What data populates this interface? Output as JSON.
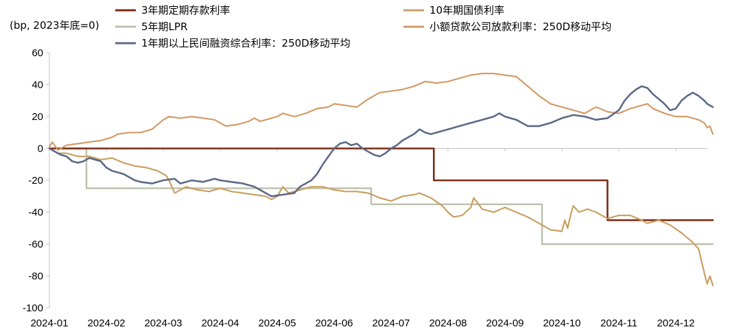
{
  "chart_data": {
    "type": "line",
    "title": "",
    "unit_label": "(bp, 2023年底=0)",
    "xlabel": "",
    "ylabel": "",
    "ylim": [
      -100,
      60
    ],
    "y_ticks": [
      60,
      40,
      20,
      0,
      -20,
      -40,
      -60,
      -80,
      -100
    ],
    "y_tick_labels": [
      "60",
      "40",
      "20",
      "0",
      "-20",
      "-40",
      "-60",
      "-80",
      "-100"
    ],
    "x_tick_labels": [
      "2024-01",
      "2024-02",
      "2024-03",
      "2024-04",
      "2024-05",
      "2024-06",
      "2024-07",
      "2024-08",
      "2024-09",
      "2024-10",
      "2024-11",
      "2024-12"
    ],
    "xlim_months": [
      0,
      11.7
    ],
    "legend_position": "top",
    "series": [
      {
        "name": "3年期定期存款利率",
        "color": "#7b2a12",
        "step": true,
        "points": [
          [
            0,
            0
          ],
          [
            6.75,
            0
          ],
          [
            6.75,
            -20
          ],
          [
            9.8,
            -20
          ],
          [
            9.8,
            -45
          ],
          [
            11.65,
            -45
          ]
        ]
      },
      {
        "name": "10年期国债利率",
        "color": "#c9a062",
        "step": false,
        "points": [
          [
            0,
            0
          ],
          [
            0.15,
            -3
          ],
          [
            0.3,
            -3
          ],
          [
            0.5,
            -5
          ],
          [
            0.7,
            -5
          ],
          [
            0.9,
            -7
          ],
          [
            1.1,
            -6
          ],
          [
            1.3,
            -9
          ],
          [
            1.5,
            -11
          ],
          [
            1.7,
            -12
          ],
          [
            1.9,
            -14
          ],
          [
            2.05,
            -17
          ],
          [
            2.1,
            -20
          ],
          [
            2.2,
            -28
          ],
          [
            2.4,
            -24
          ],
          [
            2.6,
            -26
          ],
          [
            2.8,
            -27
          ],
          [
            3.0,
            -25
          ],
          [
            3.2,
            -27
          ],
          [
            3.4,
            -28
          ],
          [
            3.6,
            -29
          ],
          [
            3.8,
            -30
          ],
          [
            3.9,
            -32
          ],
          [
            4.0,
            -30
          ],
          [
            4.1,
            -24
          ],
          [
            4.2,
            -28
          ],
          [
            4.4,
            -26
          ],
          [
            4.6,
            -24
          ],
          [
            4.8,
            -24
          ],
          [
            5.0,
            -26
          ],
          [
            5.2,
            -27
          ],
          [
            5.4,
            -27
          ],
          [
            5.6,
            -28
          ],
          [
            5.8,
            -31
          ],
          [
            6.0,
            -33
          ],
          [
            6.2,
            -30
          ],
          [
            6.4,
            -29
          ],
          [
            6.5,
            -28
          ],
          [
            6.7,
            -31
          ],
          [
            6.9,
            -36
          ],
          [
            7.0,
            -40
          ],
          [
            7.1,
            -43
          ],
          [
            7.25,
            -42
          ],
          [
            7.4,
            -37
          ],
          [
            7.45,
            -31
          ],
          [
            7.6,
            -38
          ],
          [
            7.8,
            -40
          ],
          [
            8.0,
            -37
          ],
          [
            8.2,
            -40
          ],
          [
            8.4,
            -43
          ],
          [
            8.6,
            -47
          ],
          [
            8.8,
            -51
          ],
          [
            9.0,
            -52
          ],
          [
            9.05,
            -45
          ],
          [
            9.1,
            -50
          ],
          [
            9.15,
            -42
          ],
          [
            9.2,
            -36
          ],
          [
            9.3,
            -40
          ],
          [
            9.45,
            -38
          ],
          [
            9.6,
            -40
          ],
          [
            9.8,
            -44
          ],
          [
            10.0,
            -42
          ],
          [
            10.2,
            -42
          ],
          [
            10.4,
            -45
          ],
          [
            10.5,
            -47
          ],
          [
            10.7,
            -45
          ],
          [
            10.9,
            -48
          ],
          [
            11.1,
            -53
          ],
          [
            11.3,
            -59
          ],
          [
            11.4,
            -63
          ],
          [
            11.5,
            -78
          ],
          [
            11.55,
            -85
          ],
          [
            11.6,
            -80
          ],
          [
            11.65,
            -86
          ]
        ]
      },
      {
        "name": "5年期LPR",
        "color": "#bcbfaa",
        "step": true,
        "points": [
          [
            0,
            0
          ],
          [
            0.65,
            0
          ],
          [
            0.65,
            -25
          ],
          [
            5.65,
            -25
          ],
          [
            5.65,
            -35
          ],
          [
            8.65,
            -35
          ],
          [
            8.65,
            -60
          ],
          [
            11.65,
            -60
          ]
        ]
      },
      {
        "name": "小额贷款公司放款利率：250D移动平均",
        "color": "#d29b66",
        "step": false,
        "points": [
          [
            0,
            1
          ],
          [
            0.05,
            4
          ],
          [
            0.15,
            -1
          ],
          [
            0.3,
            2
          ],
          [
            0.5,
            3
          ],
          [
            0.7,
            4
          ],
          [
            0.9,
            5
          ],
          [
            1.1,
            7
          ],
          [
            1.2,
            9
          ],
          [
            1.4,
            10
          ],
          [
            1.6,
            10
          ],
          [
            1.8,
            12
          ],
          [
            2.0,
            18
          ],
          [
            2.1,
            20
          ],
          [
            2.3,
            19
          ],
          [
            2.5,
            20
          ],
          [
            2.7,
            19
          ],
          [
            2.9,
            18
          ],
          [
            3.0,
            16
          ],
          [
            3.1,
            14
          ],
          [
            3.3,
            15
          ],
          [
            3.5,
            17
          ],
          [
            3.6,
            19
          ],
          [
            3.7,
            17
          ],
          [
            3.9,
            19
          ],
          [
            4.0,
            20
          ],
          [
            4.1,
            22
          ],
          [
            4.3,
            20
          ],
          [
            4.5,
            22
          ],
          [
            4.7,
            25
          ],
          [
            4.9,
            26
          ],
          [
            5.0,
            28
          ],
          [
            5.2,
            27
          ],
          [
            5.4,
            26
          ],
          [
            5.6,
            31
          ],
          [
            5.8,
            35
          ],
          [
            6.0,
            36
          ],
          [
            6.2,
            37
          ],
          [
            6.4,
            39
          ],
          [
            6.6,
            42
          ],
          [
            6.8,
            41
          ],
          [
            7.0,
            42
          ],
          [
            7.2,
            44
          ],
          [
            7.4,
            46
          ],
          [
            7.6,
            47
          ],
          [
            7.8,
            47
          ],
          [
            8.0,
            46
          ],
          [
            8.2,
            45
          ],
          [
            8.4,
            39
          ],
          [
            8.6,
            33
          ],
          [
            8.8,
            28
          ],
          [
            9.0,
            26
          ],
          [
            9.2,
            24
          ],
          [
            9.4,
            22
          ],
          [
            9.6,
            26
          ],
          [
            9.8,
            23
          ],
          [
            10.0,
            22
          ],
          [
            10.2,
            25
          ],
          [
            10.4,
            27
          ],
          [
            10.5,
            28
          ],
          [
            10.6,
            25
          ],
          [
            10.8,
            22
          ],
          [
            11.0,
            20
          ],
          [
            11.2,
            20
          ],
          [
            11.4,
            18
          ],
          [
            11.5,
            16
          ],
          [
            11.55,
            13
          ],
          [
            11.6,
            14
          ],
          [
            11.65,
            9
          ]
        ]
      },
      {
        "name": "1年期以上民间融资综合利率：250D移动平均",
        "color": "#5c6987",
        "step": false,
        "points": [
          [
            0,
            0
          ],
          [
            0.1,
            -2
          ],
          [
            0.2,
            -4
          ],
          [
            0.3,
            -5
          ],
          [
            0.4,
            -8
          ],
          [
            0.5,
            -9
          ],
          [
            0.6,
            -8
          ],
          [
            0.7,
            -6
          ],
          [
            0.8,
            -7
          ],
          [
            0.9,
            -8
          ],
          [
            1.0,
            -12
          ],
          [
            1.1,
            -14
          ],
          [
            1.3,
            -16
          ],
          [
            1.5,
            -20
          ],
          [
            1.6,
            -21
          ],
          [
            1.8,
            -22
          ],
          [
            2.0,
            -20
          ],
          [
            2.2,
            -19
          ],
          [
            2.3,
            -22
          ],
          [
            2.5,
            -20
          ],
          [
            2.7,
            -21
          ],
          [
            2.9,
            -19
          ],
          [
            3.0,
            -20
          ],
          [
            3.2,
            -21
          ],
          [
            3.4,
            -22
          ],
          [
            3.6,
            -24
          ],
          [
            3.8,
            -28
          ],
          [
            3.9,
            -30
          ],
          [
            4.1,
            -29
          ],
          [
            4.3,
            -28
          ],
          [
            4.4,
            -24
          ],
          [
            4.5,
            -22
          ],
          [
            4.6,
            -20
          ],
          [
            4.7,
            -16
          ],
          [
            4.8,
            -10
          ],
          [
            4.9,
            -5
          ],
          [
            5.0,
            0
          ],
          [
            5.1,
            3
          ],
          [
            5.2,
            4
          ],
          [
            5.3,
            2
          ],
          [
            5.4,
            3
          ],
          [
            5.5,
            0
          ],
          [
            5.6,
            -2
          ],
          [
            5.7,
            -4
          ],
          [
            5.8,
            -5
          ],
          [
            5.9,
            -3
          ],
          [
            6.0,
            0
          ],
          [
            6.1,
            2
          ],
          [
            6.2,
            5
          ],
          [
            6.3,
            7
          ],
          [
            6.4,
            9
          ],
          [
            6.5,
            12
          ],
          [
            6.6,
            10
          ],
          [
            6.7,
            9
          ],
          [
            6.8,
            10
          ],
          [
            7.0,
            12
          ],
          [
            7.2,
            14
          ],
          [
            7.4,
            16
          ],
          [
            7.6,
            18
          ],
          [
            7.8,
            20
          ],
          [
            7.9,
            22
          ],
          [
            8.0,
            20
          ],
          [
            8.2,
            18
          ],
          [
            8.4,
            14
          ],
          [
            8.6,
            14
          ],
          [
            8.8,
            16
          ],
          [
            9.0,
            19
          ],
          [
            9.2,
            21
          ],
          [
            9.4,
            20
          ],
          [
            9.6,
            18
          ],
          [
            9.8,
            19
          ],
          [
            10.0,
            24
          ],
          [
            10.1,
            30
          ],
          [
            10.2,
            34
          ],
          [
            10.3,
            37
          ],
          [
            10.4,
            39
          ],
          [
            10.5,
            38
          ],
          [
            10.6,
            34
          ],
          [
            10.8,
            28
          ],
          [
            10.9,
            24
          ],
          [
            11.0,
            25
          ],
          [
            11.1,
            30
          ],
          [
            11.2,
            33
          ],
          [
            11.3,
            35
          ],
          [
            11.4,
            33
          ],
          [
            11.5,
            30
          ],
          [
            11.55,
            28
          ],
          [
            11.6,
            27
          ],
          [
            11.65,
            26
          ]
        ]
      }
    ]
  }
}
